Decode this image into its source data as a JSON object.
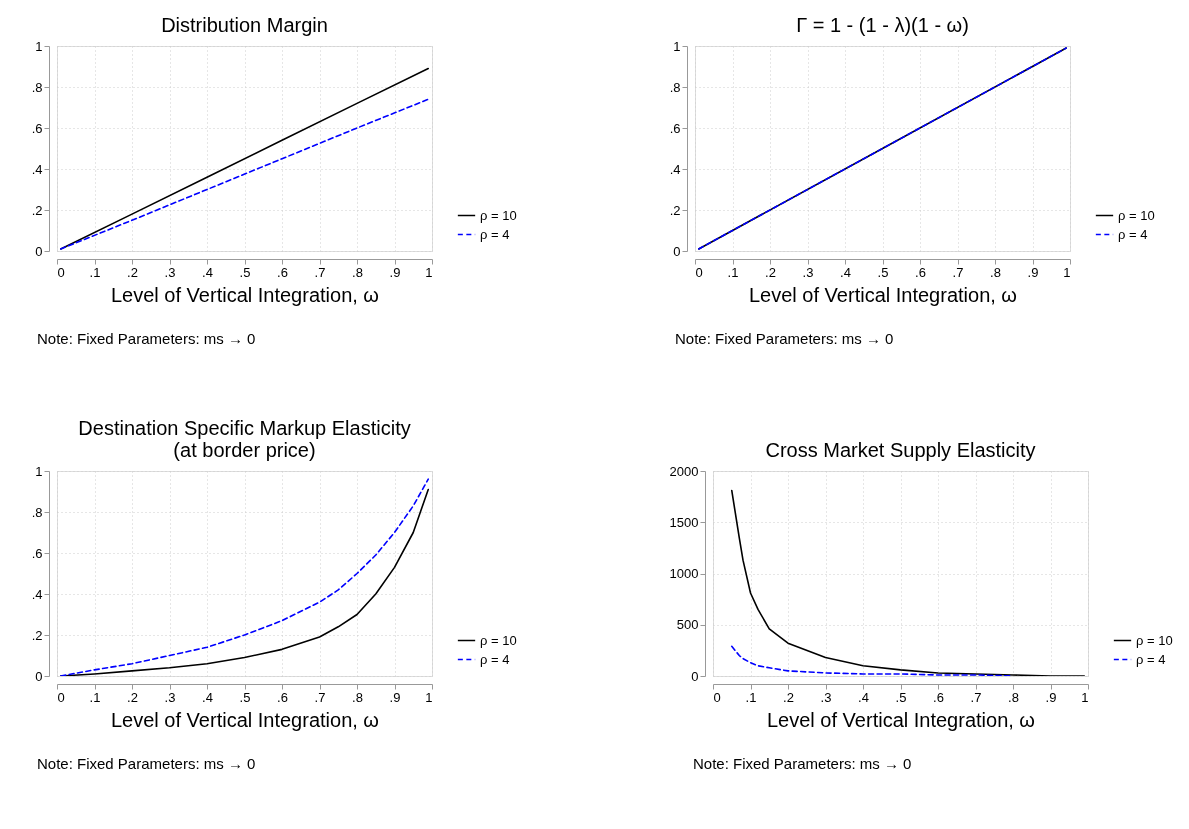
{
  "chart_data": [
    {
      "type": "line",
      "title": "Distribution Margin",
      "xlabel": "Level of Vertical Integration, ω",
      "annotations": [
        "Note: Fixed Parameters: ms → 0"
      ],
      "legend": "right",
      "grid": true,
      "xlim": [
        0,
        1
      ],
      "xticks": [
        0,
        {
          "value": 0.1,
          "label": ".1"
        },
        {
          "value": 0.2,
          "label": ".2"
        },
        {
          "value": 0.3,
          "label": ".3"
        },
        {
          "value": 0.4,
          "label": ".4"
        },
        {
          "value": 0.5,
          "label": ".5"
        },
        {
          "value": 0.6,
          "label": ".6"
        },
        {
          "value": 0.7,
          "label": ".7"
        },
        {
          "value": 0.8,
          "label": ".8"
        },
        {
          "value": 0.9,
          "label": ".9"
        },
        1
      ],
      "ylim": [
        0,
        1
      ],
      "yticks": [
        0,
        {
          "value": 0.2,
          "label": ".2"
        },
        {
          "value": 0.4,
          "label": ".4"
        },
        {
          "value": 0.6,
          "label": ".6"
        },
        {
          "value": 0.8,
          "label": ".8"
        },
        1
      ],
      "x": [
        0.01,
        0.2,
        0.4,
        0.6,
        0.8,
        0.99
      ],
      "series": [
        {
          "name": "ρ = 10",
          "color": "#000000",
          "line_style": "solid",
          "values": [
            0.01,
            0.18,
            0.36,
            0.54,
            0.72,
            0.89
          ]
        },
        {
          "name": "ρ = 4",
          "color": "#0000ff",
          "line_style": "dashed",
          "values": [
            0.01,
            0.15,
            0.3,
            0.45,
            0.6,
            0.74
          ]
        }
      ]
    },
    {
      "type": "line",
      "title": "Γ = 1 - (1 - λ)(1 - ω)",
      "xlabel": "Level of Vertical Integration, ω",
      "annotations": [
        "Note: Fixed Parameters: ms → 0"
      ],
      "legend": "right",
      "grid": true,
      "xlim": [
        0,
        1
      ],
      "xticks": [
        0,
        {
          "value": 0.1,
          "label": ".1"
        },
        {
          "value": 0.2,
          "label": ".2"
        },
        {
          "value": 0.3,
          "label": ".3"
        },
        {
          "value": 0.4,
          "label": ".4"
        },
        {
          "value": 0.5,
          "label": ".5"
        },
        {
          "value": 0.6,
          "label": ".6"
        },
        {
          "value": 0.7,
          "label": ".7"
        },
        {
          "value": 0.8,
          "label": ".8"
        },
        {
          "value": 0.9,
          "label": ".9"
        },
        1
      ],
      "ylim": [
        0,
        1
      ],
      "yticks": [
        0,
        {
          "value": 0.2,
          "label": ".2"
        },
        {
          "value": 0.4,
          "label": ".4"
        },
        {
          "value": 0.6,
          "label": ".6"
        },
        {
          "value": 0.8,
          "label": ".8"
        },
        1
      ],
      "x": [
        0.01,
        0.5,
        0.99
      ],
      "series": [
        {
          "name": "ρ = 10",
          "color": "#000000",
          "line_style": "solid",
          "values": [
            0.01,
            0.5,
            0.99
          ]
        },
        {
          "name": "ρ = 4",
          "color": "#0000ff",
          "line_style": "dashed",
          "values": [
            0.01,
            0.5,
            0.99
          ]
        }
      ]
    },
    {
      "type": "line",
      "title": "Destination Specific Markup Elasticity\n(at border price)",
      "xlabel": "Level of Vertical Integration, ω",
      "annotations": [
        "Note: Fixed Parameters: ms → 0"
      ],
      "legend": "right",
      "grid": true,
      "xlim": [
        0,
        1
      ],
      "xticks": [
        0,
        {
          "value": 0.1,
          "label": ".1"
        },
        {
          "value": 0.2,
          "label": ".2"
        },
        {
          "value": 0.3,
          "label": ".3"
        },
        {
          "value": 0.4,
          "label": ".4"
        },
        {
          "value": 0.5,
          "label": ".5"
        },
        {
          "value": 0.6,
          "label": ".6"
        },
        {
          "value": 0.7,
          "label": ".7"
        },
        {
          "value": 0.8,
          "label": ".8"
        },
        {
          "value": 0.9,
          "label": ".9"
        },
        1
      ],
      "ylim": [
        0,
        1
      ],
      "yticks": [
        0,
        {
          "value": 0.2,
          "label": ".2"
        },
        {
          "value": 0.4,
          "label": ".4"
        },
        {
          "value": 0.6,
          "label": ".6"
        },
        {
          "value": 0.8,
          "label": ".8"
        },
        1
      ],
      "x": [
        0.01,
        0.1,
        0.2,
        0.3,
        0.4,
        0.5,
        0.6,
        0.7,
        0.75,
        0.8,
        0.85,
        0.9,
        0.95,
        0.99
      ],
      "series": [
        {
          "name": "ρ = 10",
          "color": "#000000",
          "line_style": "solid",
          "values": [
            0.0,
            0.01,
            0.025,
            0.04,
            0.06,
            0.09,
            0.13,
            0.19,
            0.24,
            0.3,
            0.4,
            0.53,
            0.7,
            0.91
          ]
        },
        {
          "name": "ρ = 4",
          "color": "#0000ff",
          "line_style": "dashed",
          "values": [
            0.0,
            0.03,
            0.06,
            0.1,
            0.14,
            0.2,
            0.27,
            0.36,
            0.42,
            0.5,
            0.59,
            0.7,
            0.83,
            0.96
          ]
        }
      ]
    },
    {
      "type": "line",
      "title": "Cross Market Supply Elasticity",
      "xlabel": "Level of Vertical Integration, ω",
      "annotations": [
        "Note: Fixed Parameters: ms → 0"
      ],
      "legend": "right",
      "grid": true,
      "xlim": [
        0,
        1
      ],
      "xticks": [
        0,
        {
          "value": 0.1,
          "label": ".1"
        },
        {
          "value": 0.2,
          "label": ".2"
        },
        {
          "value": 0.3,
          "label": ".3"
        },
        {
          "value": 0.4,
          "label": ".4"
        },
        {
          "value": 0.5,
          "label": ".5"
        },
        {
          "value": 0.6,
          "label": ".6"
        },
        {
          "value": 0.7,
          "label": ".7"
        },
        {
          "value": 0.8,
          "label": ".8"
        },
        {
          "value": 0.9,
          "label": ".9"
        },
        1
      ],
      "ylim": [
        0,
        2000
      ],
      "yticks": [
        0,
        500,
        1000,
        1500,
        2000
      ],
      "x": [
        0.05,
        0.07,
        0.08,
        0.1,
        0.12,
        0.15,
        0.2,
        0.3,
        0.4,
        0.5,
        0.6,
        0.7,
        0.8,
        0.9,
        0.99
      ],
      "series": [
        {
          "name": "ρ = 10",
          "color": "#000000",
          "line_style": "solid",
          "values": [
            1810,
            1350,
            1130,
            810,
            650,
            460,
            320,
            180,
            100,
            60,
            30,
            20,
            10,
            0,
            0
          ]
        },
        {
          "name": "ρ = 4",
          "color": "#0000ff",
          "line_style": "dashed",
          "x": [
            0.05,
            0.07,
            0.08,
            0.1,
            0.12,
            0.15,
            0.2,
            0.3,
            0.4,
            0.5,
            0.6,
            0.7,
            0.8
          ],
          "values": [
            290,
            200,
            170,
            130,
            100,
            80,
            50,
            30,
            20,
            20,
            10,
            10,
            0
          ]
        }
      ]
    }
  ]
}
